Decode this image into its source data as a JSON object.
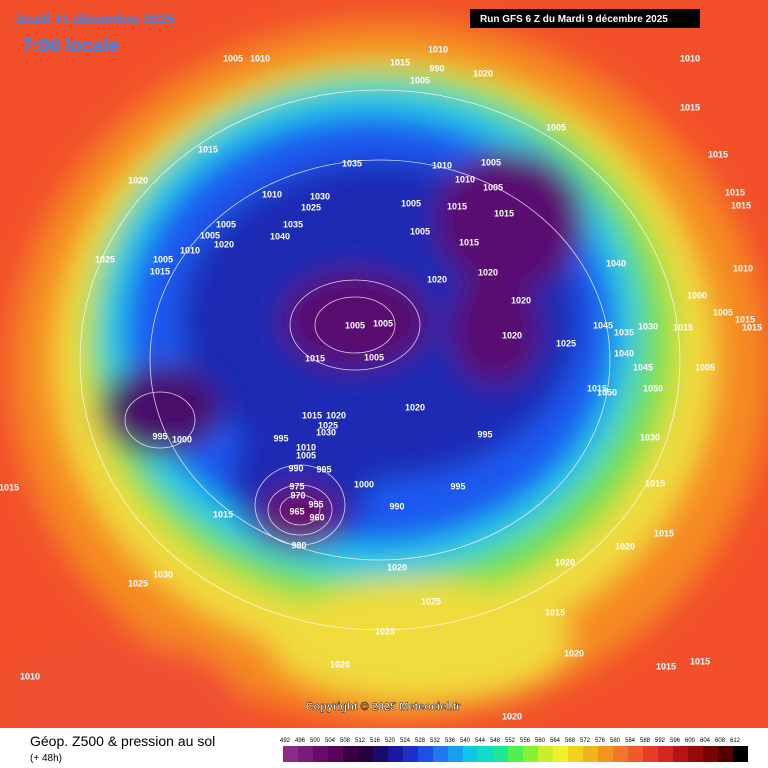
{
  "header": {
    "title": "Jeudi 11 décembre 2025",
    "subtitle": "7:00 locale",
    "run": "Run GFS 6 Z du Mardi 9 décembre 2025"
  },
  "copyright": "Copyright © 2025 Meteociel.fr",
  "footer": {
    "title": "Géop. Z500 & pression au sol",
    "subtitle": "(+ 48h)"
  },
  "legend": {
    "ticks": [
      492,
      496,
      500,
      504,
      508,
      512,
      516,
      520,
      524,
      528,
      532,
      536,
      540,
      544,
      548,
      552,
      556,
      560,
      564,
      568,
      572,
      576,
      580,
      584,
      588,
      592,
      596,
      600,
      604,
      608,
      612
    ],
    "colors": [
      "#8c2a8c",
      "#7a1a7a",
      "#6a0a6a",
      "#55055a",
      "#3a003f",
      "#250040",
      "#1a0a6e",
      "#1a1aa0",
      "#1e30c8",
      "#1e50e6",
      "#1e78f0",
      "#18a0f0",
      "#10c8e6",
      "#10dcc8",
      "#20e696",
      "#50f050",
      "#8cf032",
      "#c8f028",
      "#f0f028",
      "#f0d21e",
      "#f0b41e",
      "#f0961e",
      "#f07828",
      "#f05a28",
      "#e63c28",
      "#d22820",
      "#b41414",
      "#960a0a",
      "#780505",
      "#500000",
      "#000000"
    ]
  },
  "isobar_labels": [
    "1005",
    "1010",
    "1010",
    "1015",
    "990",
    "1005",
    "1020",
    "1010",
    "1015",
    "1015",
    "1005",
    "1015",
    "1020",
    "1035",
    "1010",
    "1005",
    "1010",
    "1005",
    "1015",
    "1015",
    "1010",
    "1030",
    "1025",
    "1005",
    "1015",
    "1015",
    "1005",
    "1035",
    "1005",
    "1040",
    "1020",
    "1010",
    "1005",
    "1015",
    "1025",
    "1005",
    "1015",
    "1040",
    "1010",
    "1020",
    "1020",
    "1000",
    "1020",
    "1005",
    "1015",
    "1015",
    "1005",
    "1005",
    "1045",
    "1035",
    "1030",
    "1015",
    "1020",
    "1025",
    "1015",
    "1005",
    "1040",
    "1045",
    "1005",
    "1015",
    "1050",
    "1050",
    "1020",
    "1015",
    "1020",
    "1025",
    "995",
    "1000",
    "1030",
    "995",
    "995",
    "1030",
    "1010",
    "1005",
    "990",
    "995",
    "1015",
    "1000",
    "995",
    "975",
    "970",
    "955",
    "990",
    "965",
    "960",
    "1015",
    "980",
    "1015",
    "1015",
    "1020",
    "1030",
    "1020",
    "1020",
    "1025",
    "1025",
    "1015",
    "1025",
    "1020",
    "1020",
    "1015",
    "1015",
    "1010",
    "1020"
  ]
}
